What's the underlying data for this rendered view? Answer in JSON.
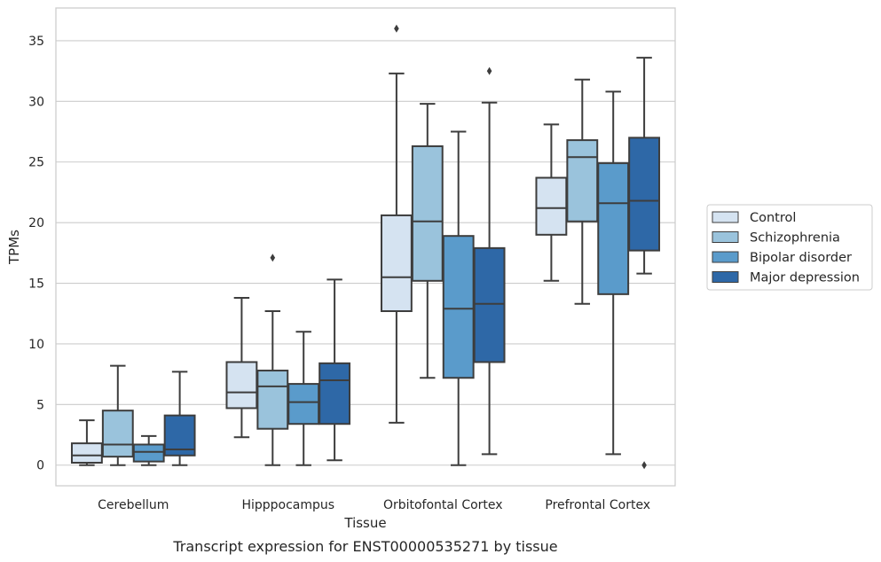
{
  "chart_data": {
    "type": "boxplot",
    "caption": "Transcript expression for ENST00000535271 by tissue",
    "xlabel": "Tissue",
    "ylabel": "TPMs",
    "ylim": [
      -1.7,
      37.7
    ],
    "yticks": [
      0,
      5,
      10,
      15,
      20,
      25,
      30,
      35
    ],
    "grid": "horizontal",
    "legend_position": "right",
    "categories": [
      "Cerebellum",
      "Hipppocampus",
      "Orbitofontal Cortex",
      "Prefrontal Cortex"
    ],
    "series": [
      {
        "name": "Control",
        "color": "#d5e3f1",
        "boxes": [
          {
            "whislo": 0.0,
            "q1": 0.2,
            "med": 0.8,
            "q3": 1.8,
            "whishi": 3.7,
            "fliers": []
          },
          {
            "whislo": 2.3,
            "q1": 4.7,
            "med": 6.0,
            "q3": 8.5,
            "whishi": 13.8,
            "fliers": []
          },
          {
            "whislo": 3.5,
            "q1": 12.7,
            "med": 15.5,
            "q3": 20.6,
            "whishi": 32.3,
            "fliers": [
              36.0
            ]
          },
          {
            "whislo": 15.2,
            "q1": 19.0,
            "med": 21.2,
            "q3": 23.7,
            "whishi": 28.1,
            "fliers": []
          }
        ]
      },
      {
        "name": "Schizophrenia",
        "color": "#9ac3dc",
        "boxes": [
          {
            "whislo": 0.0,
            "q1": 0.7,
            "med": 1.7,
            "q3": 4.5,
            "whishi": 8.2,
            "fliers": []
          },
          {
            "whislo": 0.0,
            "q1": 3.0,
            "med": 6.5,
            "q3": 7.8,
            "whishi": 12.7,
            "fliers": [
              17.1
            ]
          },
          {
            "whislo": 7.2,
            "q1": 15.2,
            "med": 20.1,
            "q3": 26.3,
            "whishi": 29.8,
            "fliers": []
          },
          {
            "whislo": 13.3,
            "q1": 20.1,
            "med": 25.4,
            "q3": 26.8,
            "whishi": 31.8,
            "fliers": []
          }
        ]
      },
      {
        "name": "Bipolar disorder",
        "color": "#5a9bcb",
        "boxes": [
          {
            "whislo": 0.0,
            "q1": 0.3,
            "med": 1.1,
            "q3": 1.7,
            "whishi": 2.4,
            "fliers": []
          },
          {
            "whislo": 0.0,
            "q1": 3.4,
            "med": 5.2,
            "q3": 6.7,
            "whishi": 11.0,
            "fliers": []
          },
          {
            "whislo": 0.0,
            "q1": 7.2,
            "med": 12.9,
            "q3": 18.9,
            "whishi": 27.5,
            "fliers": []
          },
          {
            "whislo": 0.9,
            "q1": 14.1,
            "med": 21.6,
            "q3": 24.9,
            "whishi": 30.8,
            "fliers": []
          }
        ]
      },
      {
        "name": "Major depression",
        "color": "#2e68a7",
        "boxes": [
          {
            "whislo": 0.0,
            "q1": 0.8,
            "med": 1.3,
            "q3": 4.1,
            "whishi": 7.7,
            "fliers": []
          },
          {
            "whislo": 0.4,
            "q1": 3.4,
            "med": 7.0,
            "q3": 8.4,
            "whishi": 15.3,
            "fliers": []
          },
          {
            "whislo": 0.9,
            "q1": 8.5,
            "med": 13.3,
            "q3": 17.9,
            "whishi": 29.9,
            "fliers": [
              32.5
            ]
          },
          {
            "whislo": 15.8,
            "q1": 17.7,
            "med": 21.8,
            "q3": 27.0,
            "whishi": 33.6,
            "fliers": [
              0.0
            ]
          }
        ]
      }
    ]
  }
}
